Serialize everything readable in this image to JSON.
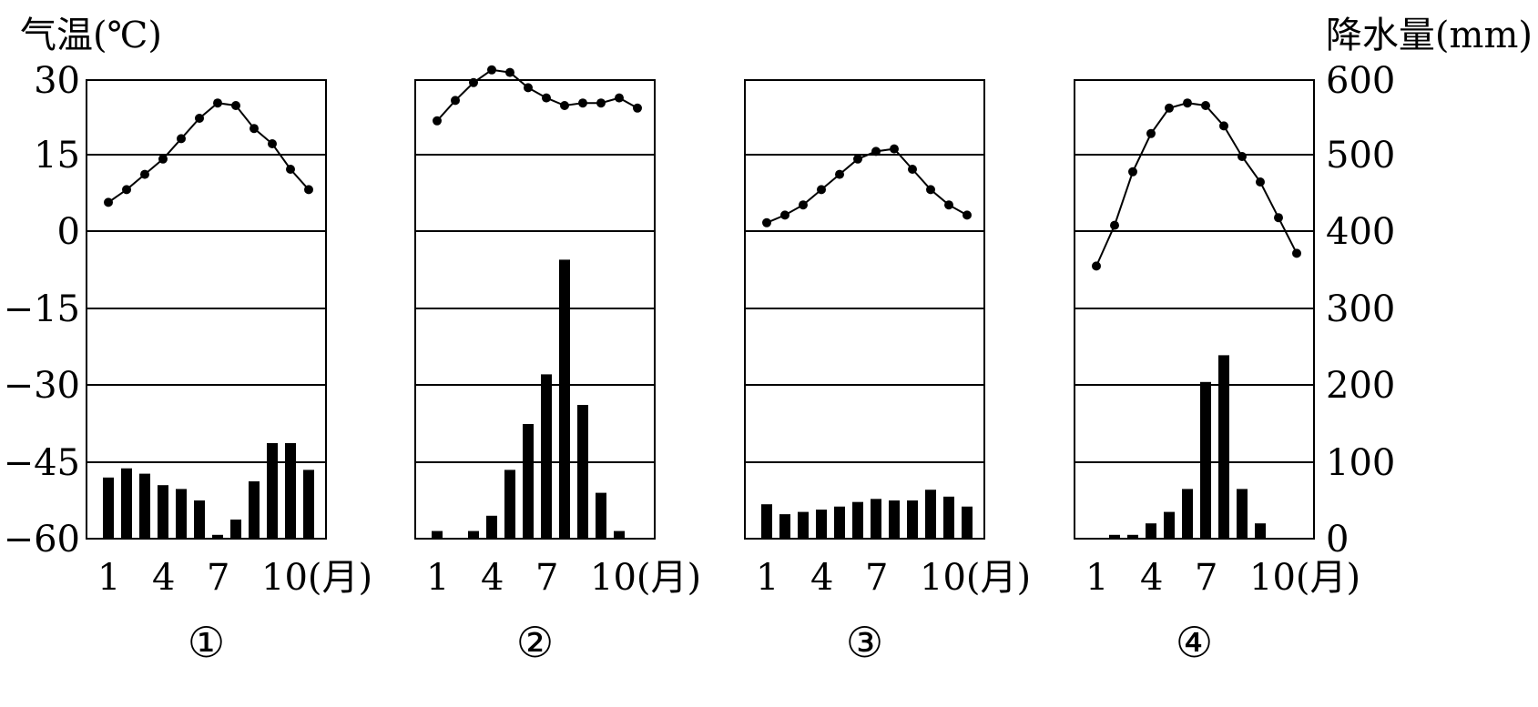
{
  "left_axis_title": "气温(℃)",
  "right_axis_title": "降水量(mm)",
  "left_ticks": [
    "30",
    "15",
    "0",
    "−15",
    "−30",
    "−45",
    "−60"
  ],
  "right_ticks": [
    "600",
    "500",
    "400",
    "300",
    "200",
    "100",
    "0"
  ],
  "month_ticks": [
    "1",
    "4",
    "7",
    "10(月)"
  ],
  "chart_data": [
    {
      "type": "line+bar",
      "label": "①",
      "months": [
        1,
        2,
        3,
        4,
        5,
        6,
        7,
        8,
        9,
        10,
        11,
        12
      ],
      "temperature": [
        6,
        8.5,
        11.5,
        14.5,
        18.5,
        22.5,
        25.5,
        25,
        20.5,
        17.5,
        12.5,
        8.5
      ],
      "precipitation": [
        80,
        92,
        85,
        70,
        65,
        50,
        5,
        25,
        75,
        125,
        125,
        90
      ],
      "ylim_temperature": [
        -60,
        30
      ],
      "ylim_precipitation": [
        0,
        600
      ]
    },
    {
      "type": "line+bar",
      "label": "②",
      "months": [
        1,
        2,
        3,
        4,
        5,
        6,
        7,
        8,
        9,
        10,
        11,
        12
      ],
      "temperature": [
        22,
        26,
        29.5,
        32,
        31.5,
        28.5,
        26.5,
        25,
        25.5,
        25.5,
        26.5,
        24.5
      ],
      "precipitation": [
        10,
        0,
        10,
        30,
        90,
        150,
        215,
        365,
        175,
        60,
        10,
        0
      ],
      "ylim_temperature": [
        -60,
        30
      ],
      "ylim_precipitation": [
        0,
        600
      ]
    },
    {
      "type": "line+bar",
      "label": "③",
      "months": [
        1,
        2,
        3,
        4,
        5,
        6,
        7,
        8,
        9,
        10,
        11,
        12
      ],
      "temperature": [
        2,
        3.5,
        5.5,
        8.5,
        11.5,
        14.5,
        16,
        16.5,
        12.5,
        8.5,
        5.5,
        3.5
      ],
      "precipitation": [
        45,
        32,
        35,
        38,
        42,
        48,
        52,
        50,
        50,
        64,
        55,
        42
      ],
      "ylim_temperature": [
        -60,
        30
      ],
      "ylim_precipitation": [
        0,
        600
      ]
    },
    {
      "type": "line+bar",
      "label": "④",
      "months": [
        1,
        2,
        3,
        4,
        5,
        6,
        7,
        8,
        9,
        10,
        11,
        12
      ],
      "temperature": [
        -6.5,
        1.5,
        12,
        19.5,
        24.5,
        25.5,
        25,
        21,
        15,
        10,
        3,
        -4
      ],
      "precipitation": [
        0,
        5,
        5,
        20,
        35,
        65,
        205,
        240,
        65,
        20,
        0,
        0
      ],
      "ylim_temperature": [
        -60,
        30
      ],
      "ylim_precipitation": [
        0,
        600
      ]
    }
  ]
}
